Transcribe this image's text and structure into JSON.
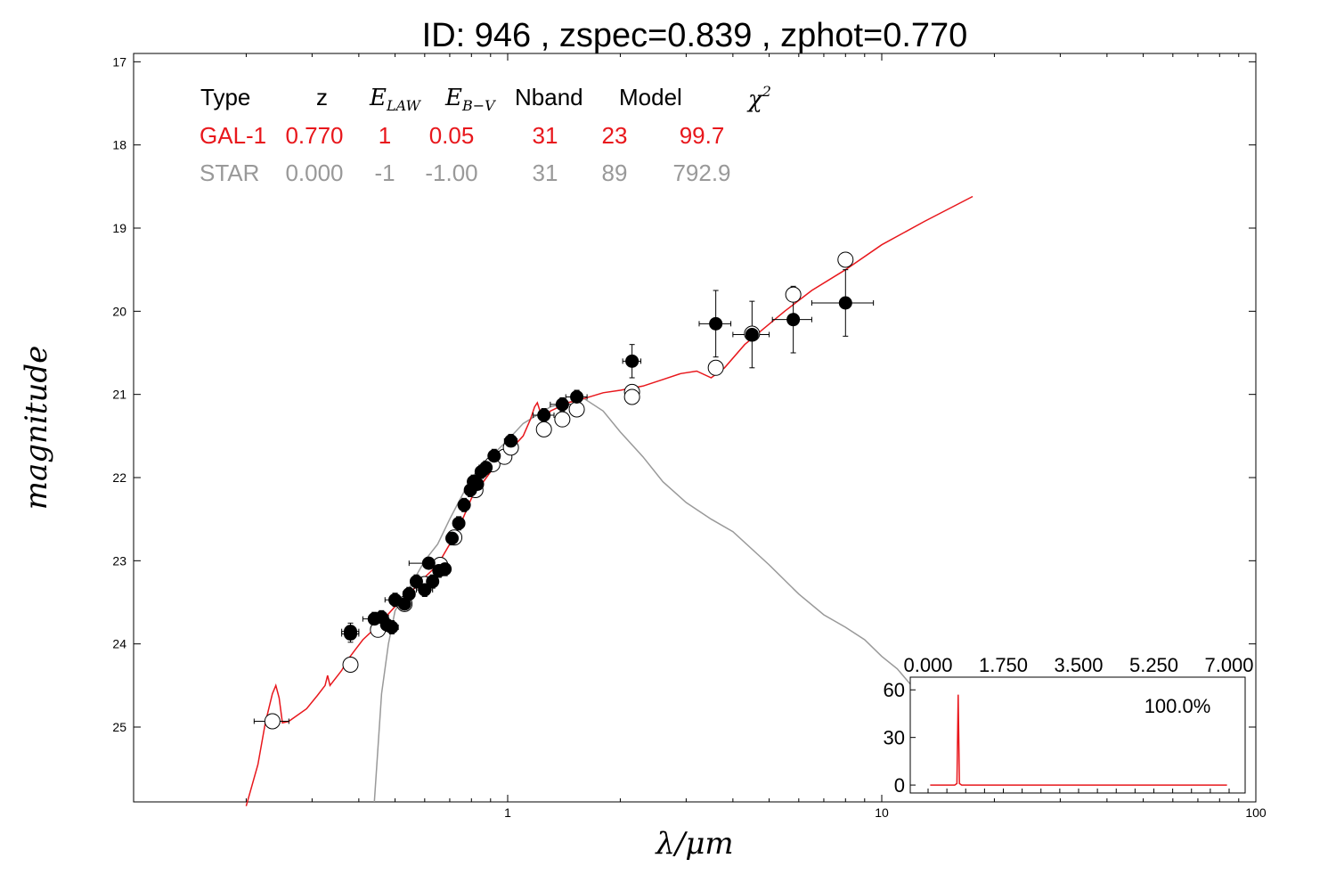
{
  "chart_data": [
    {
      "type": "scatter",
      "title": "ID:  946   , zspec=0.839 , zphot=0.770",
      "xlabel": "λ/μm",
      "ylabel": "magnitude",
      "x_scale": "log",
      "xlim": [
        0.1,
        100
      ],
      "ylim": [
        25.9,
        16.9
      ],
      "x_ticks": [
        "1",
        "10",
        "100"
      ],
      "y_ticks": [
        "17",
        "18",
        "19",
        "20",
        "21",
        "22",
        "23",
        "24",
        "25"
      ],
      "y_tick_values": [
        17,
        18,
        19,
        20,
        21,
        22,
        23,
        24,
        25
      ],
      "grid": false,
      "table": {
        "headers": {
          "type": "Type",
          "z": "z",
          "elaw_base": "E",
          "elaw_sub": "LAW",
          "ebv_base": "E",
          "ebv_sub": "B−V",
          "nband": "Nband",
          "model": "Model",
          "chi_base": "χ",
          "chi_sup": "2"
        },
        "rows": [
          {
            "type": "GAL-1",
            "z": "0.770",
            "elaw": "1",
            "ebv": "0.05",
            "nband": "31",
            "model": "23",
            "chi2": "99.7",
            "color": "#e8171c"
          },
          {
            "type": "STAR",
            "z": "0.000",
            "elaw": "-1",
            "ebv": "-1.00",
            "nband": "31",
            "model": "89",
            "chi2": "792.9",
            "color": "#999999"
          }
        ]
      },
      "colors": {
        "galaxy_model": "#e8171c",
        "star_model": "#999999",
        "observed": "#000000",
        "model_mag": "#ffffff"
      },
      "observed_points": [
        {
          "x": 0.38,
          "y": 23.85,
          "xerr": 0.02,
          "yerr": 0.1
        },
        {
          "x": 0.38,
          "y": 23.88,
          "xerr": 0.02,
          "yerr": 0.1
        },
        {
          "x": 0.44,
          "y": 23.7,
          "xerr": 0.03,
          "yerr": 0.08
        },
        {
          "x": 0.46,
          "y": 23.68,
          "xerr": 0.02,
          "yerr": 0.08
        },
        {
          "x": 0.475,
          "y": 23.77,
          "xerr": 0.02,
          "yerr": 0.08
        },
        {
          "x": 0.49,
          "y": 23.8,
          "xerr": 0.02,
          "yerr": 0.08
        },
        {
          "x": 0.5,
          "y": 23.47,
          "xerr": 0.03,
          "yerr": 0.08
        },
        {
          "x": 0.53,
          "y": 23.52,
          "xerr": 0.02,
          "yerr": 0.08
        },
        {
          "x": 0.545,
          "y": 23.4,
          "xerr": 0.02,
          "yerr": 0.08
        },
        {
          "x": 0.57,
          "y": 23.25,
          "xerr": 0.02,
          "yerr": 0.08
        },
        {
          "x": 0.6,
          "y": 23.35,
          "xerr": 0.03,
          "yerr": 0.08
        },
        {
          "x": 0.615,
          "y": 23.03,
          "xerr": 0.07,
          "yerr": 0.05
        },
        {
          "x": 0.63,
          "y": 23.25,
          "xerr": 0.02,
          "yerr": 0.08
        },
        {
          "x": 0.655,
          "y": 23.12,
          "xerr": 0.02,
          "yerr": 0.08
        },
        {
          "x": 0.68,
          "y": 23.1,
          "xerr": 0.02,
          "yerr": 0.08
        },
        {
          "x": 0.71,
          "y": 22.73,
          "xerr": 0.02,
          "yerr": 0.08
        },
        {
          "x": 0.74,
          "y": 22.55,
          "xerr": 0.02,
          "yerr": 0.08
        },
        {
          "x": 0.765,
          "y": 22.33,
          "xerr": 0.02,
          "yerr": 0.08
        },
        {
          "x": 0.795,
          "y": 22.15,
          "xerr": 0.02,
          "yerr": 0.08
        },
        {
          "x": 0.81,
          "y": 22.05,
          "xerr": 0.02,
          "yerr": 0.08
        },
        {
          "x": 0.83,
          "y": 22.08,
          "xerr": 0.02,
          "yerr": 0.08
        },
        {
          "x": 0.85,
          "y": 21.93,
          "xerr": 0.02,
          "yerr": 0.08
        },
        {
          "x": 0.875,
          "y": 21.88,
          "xerr": 0.02,
          "yerr": 0.08
        },
        {
          "x": 0.92,
          "y": 21.74,
          "xerr": 0.03,
          "yerr": 0.08
        },
        {
          "x": 1.02,
          "y": 21.56,
          "xerr": 0.04,
          "yerr": 0.08
        },
        {
          "x": 1.25,
          "y": 21.25,
          "xerr": 0.08,
          "yerr": 0.08
        },
        {
          "x": 1.4,
          "y": 21.12,
          "xerr": 0.1,
          "yerr": 0.08
        },
        {
          "x": 1.53,
          "y": 21.03,
          "xerr": 0.1,
          "yerr": 0.08
        },
        {
          "x": 2.15,
          "y": 20.6,
          "xerr": 0.12,
          "yerr": 0.2
        },
        {
          "x": 3.6,
          "y": 20.15,
          "xerr": 0.35,
          "yerr": 0.4
        },
        {
          "x": 4.5,
          "y": 20.28,
          "xerr": 0.5,
          "yerr": 0.4
        },
        {
          "x": 5.8,
          "y": 20.1,
          "xerr": 0.7,
          "yerr": 0.4
        },
        {
          "x": 8.0,
          "y": 19.9,
          "xerr": 1.5,
          "yerr": 0.4
        }
      ],
      "model_points": [
        {
          "x": 0.235,
          "y": 24.93,
          "xerr": 0.025
        },
        {
          "x": 0.38,
          "y": 24.25,
          "xerr": 0.0
        },
        {
          "x": 0.45,
          "y": 23.83,
          "xerr": 0.0
        },
        {
          "x": 0.53,
          "y": 23.52,
          "xerr": 0.0
        },
        {
          "x": 0.6,
          "y": 23.28,
          "xerr": 0.0
        },
        {
          "x": 0.66,
          "y": 23.05,
          "xerr": 0.0
        },
        {
          "x": 0.72,
          "y": 22.72,
          "xerr": 0.0
        },
        {
          "x": 0.82,
          "y": 22.15,
          "xerr": 0.0
        },
        {
          "x": 0.91,
          "y": 21.84,
          "xerr": 0.0
        },
        {
          "x": 0.98,
          "y": 21.75,
          "xerr": 0.0
        },
        {
          "x": 1.02,
          "y": 21.64,
          "xerr": 0.0
        },
        {
          "x": 1.25,
          "y": 21.42,
          "xerr": 0.0
        },
        {
          "x": 1.4,
          "y": 21.3,
          "xerr": 0.0
        },
        {
          "x": 1.53,
          "y": 21.18,
          "xerr": 0.0
        },
        {
          "x": 2.15,
          "y": 20.97,
          "xerr": 0.0
        },
        {
          "x": 2.15,
          "y": 21.03,
          "xerr": 0.0
        },
        {
          "x": 3.6,
          "y": 20.68,
          "xerr": 0.0
        },
        {
          "x": 4.5,
          "y": 20.27,
          "xerr": 0.0
        },
        {
          "x": 5.8,
          "y": 19.8,
          "xerr": 0.0
        },
        {
          "x": 8.0,
          "y": 19.38,
          "xerr": 0.0
        }
      ],
      "galaxy_model_curve": [
        [
          0.2,
          25.95
        ],
        [
          0.215,
          25.45
        ],
        [
          0.225,
          24.95
        ],
        [
          0.235,
          24.6
        ],
        [
          0.24,
          24.5
        ],
        [
          0.245,
          24.65
        ],
        [
          0.25,
          24.95
        ],
        [
          0.26,
          24.93
        ],
        [
          0.29,
          24.78
        ],
        [
          0.31,
          24.62
        ],
        [
          0.325,
          24.5
        ],
        [
          0.33,
          24.38
        ],
        [
          0.335,
          24.5
        ],
        [
          0.36,
          24.32
        ],
        [
          0.375,
          24.18
        ],
        [
          0.39,
          24.08
        ],
        [
          0.41,
          23.95
        ],
        [
          0.45,
          23.78
        ],
        [
          0.5,
          23.55
        ],
        [
          0.55,
          23.38
        ],
        [
          0.6,
          23.2
        ],
        [
          0.65,
          23.05
        ],
        [
          0.7,
          22.8
        ],
        [
          0.75,
          22.55
        ],
        [
          0.8,
          22.25
        ],
        [
          0.9,
          21.93
        ],
        [
          1.0,
          21.7
        ],
        [
          1.1,
          21.5
        ],
        [
          1.15,
          21.3
        ],
        [
          1.18,
          21.15
        ],
        [
          1.2,
          21.1
        ],
        [
          1.25,
          21.35
        ],
        [
          1.3,
          21.2
        ],
        [
          1.45,
          21.1
        ],
        [
          1.6,
          21.05
        ],
        [
          1.8,
          20.98
        ],
        [
          2.0,
          20.95
        ],
        [
          2.3,
          20.9
        ],
        [
          2.6,
          20.82
        ],
        [
          2.9,
          20.75
        ],
        [
          3.2,
          20.72
        ],
        [
          3.5,
          20.8
        ],
        [
          3.8,
          20.68
        ],
        [
          4.3,
          20.4
        ],
        [
          4.8,
          20.22
        ],
        [
          5.5,
          20.0
        ],
        [
          6.5,
          19.75
        ],
        [
          8.0,
          19.5
        ],
        [
          10.0,
          19.2
        ],
        [
          13.0,
          18.92
        ],
        [
          17.5,
          18.62
        ]
      ],
      "star_model_curve": [
        [
          0.44,
          25.9
        ],
        [
          0.46,
          24.6
        ],
        [
          0.48,
          24.0
        ],
        [
          0.5,
          23.6
        ],
        [
          0.55,
          23.3
        ],
        [
          0.6,
          23.0
        ],
        [
          0.65,
          22.8
        ],
        [
          0.7,
          22.5
        ],
        [
          0.8,
          22.0
        ],
        [
          0.9,
          21.75
        ],
        [
          1.0,
          21.55
        ],
        [
          1.1,
          21.35
        ],
        [
          1.3,
          21.15
        ],
        [
          1.6,
          21.05
        ],
        [
          1.8,
          21.2
        ],
        [
          2.0,
          21.45
        ],
        [
          2.3,
          21.75
        ],
        [
          2.6,
          22.05
        ],
        [
          3.0,
          22.3
        ],
        [
          3.5,
          22.5
        ],
        [
          4.0,
          22.65
        ],
        [
          5.0,
          23.05
        ],
        [
          6.0,
          23.4
        ],
        [
          7.0,
          23.65
        ],
        [
          8.0,
          23.8
        ],
        [
          9.0,
          23.95
        ],
        [
          10.0,
          24.15
        ],
        [
          11.0,
          24.3
        ],
        [
          12.0,
          24.5
        ]
      ],
      "inset": {
        "type": "line",
        "x_ticks": [
          "0.000",
          "1.750",
          "3.500",
          "5.250",
          "7.000"
        ],
        "y_ticks": [
          "60",
          "30",
          "0"
        ],
        "xlim": [
          0,
          7
        ],
        "ylim": [
          -5,
          68
        ],
        "label": "100.0%",
        "pdf": [
          [
            0.05,
            0
          ],
          [
            0.62,
            0
          ],
          [
            0.67,
            1
          ],
          [
            0.7,
            57
          ],
          [
            0.73,
            1
          ],
          [
            0.78,
            0
          ],
          [
            6.95,
            0
          ]
        ]
      }
    }
  ]
}
